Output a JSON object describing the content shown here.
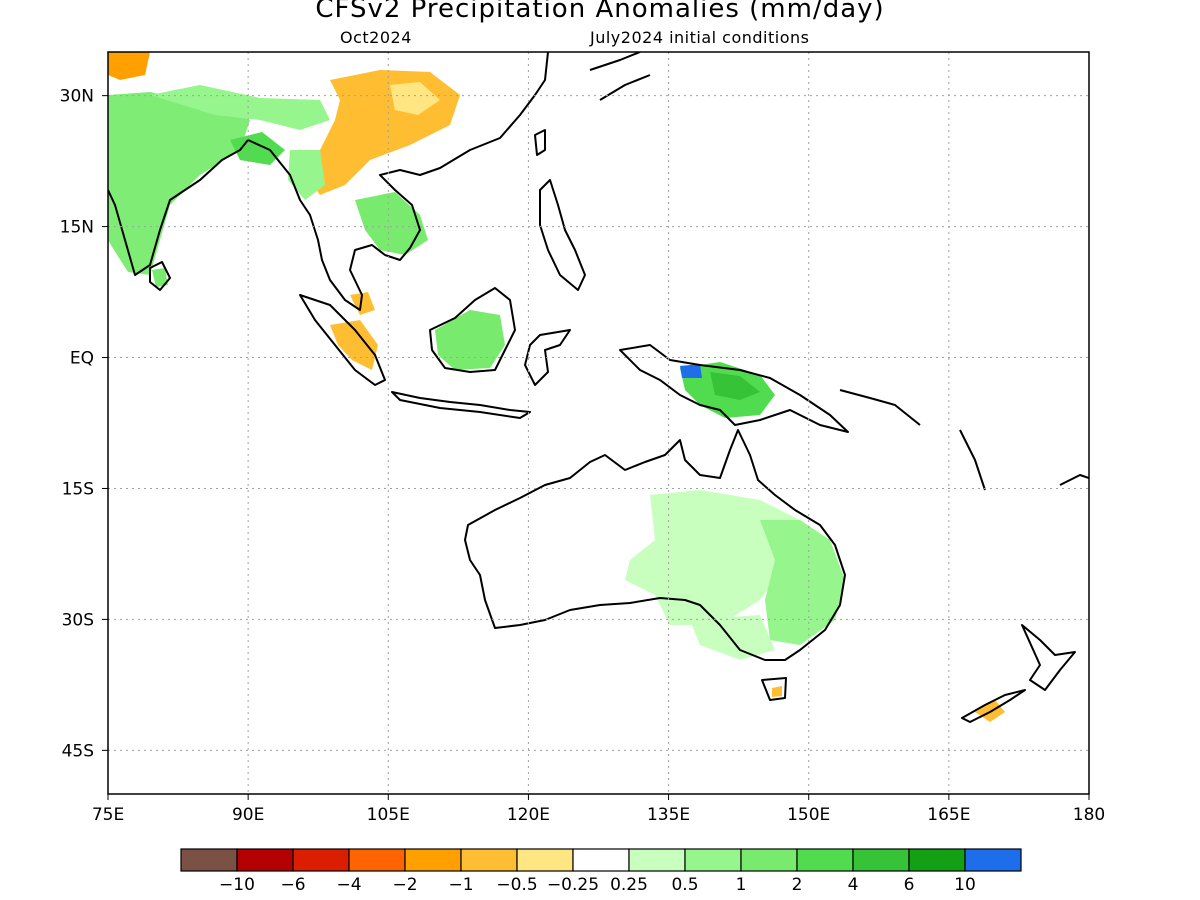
{
  "title": "CFSv2 Precipitation Anomalies (mm/day)",
  "valid_month": "Oct2024",
  "initial_conditions": "July2024 initial conditions",
  "map": {
    "lon_range": [
      75,
      180
    ],
    "lat_range": [
      -50,
      35
    ],
    "lon_ticks": [
      {
        "value": 75,
        "label": "75E"
      },
      {
        "value": 90,
        "label": "90E"
      },
      {
        "value": 105,
        "label": "105E"
      },
      {
        "value": 120,
        "label": "120E"
      },
      {
        "value": 135,
        "label": "135E"
      },
      {
        "value": 150,
        "label": "150E"
      },
      {
        "value": 165,
        "label": "165E"
      },
      {
        "value": 180,
        "label": "180"
      }
    ],
    "lat_ticks": [
      {
        "value": 30,
        "label": "30N"
      },
      {
        "value": 15,
        "label": "15N"
      },
      {
        "value": 0,
        "label": "EQ"
      },
      {
        "value": -15,
        "label": "15S"
      },
      {
        "value": -30,
        "label": "30S"
      },
      {
        "value": -45,
        "label": "45S"
      }
    ],
    "grid": true,
    "background": "#ffffff"
  },
  "colorbar": {
    "labels": [
      "−10",
      "−6",
      "−4",
      "−2",
      "−1",
      "−0.5",
      "−0.25",
      "0.25",
      "0.5",
      "1",
      "2",
      "4",
      "6",
      "10"
    ],
    "colors": [
      "#7b5045",
      "#b40000",
      "#dc1e00",
      "#ff6400",
      "#ffa000",
      "#ffbe32",
      "#ffe682",
      "#ffffff",
      "#c8ffbe",
      "#96f58c",
      "#78eb6e",
      "#50dc4e",
      "#37c337",
      "#14a014",
      "#1e6eeb"
    ]
  },
  "anomaly_regions": [
    {
      "name": "Indian subcontinent",
      "colorIndex": 9
    },
    {
      "name": "Southern China",
      "colorIndex": 5
    },
    {
      "name": "Indochina",
      "colorIndex": 9
    },
    {
      "name": "Sumatra",
      "colorIndex": 5
    },
    {
      "name": "Borneo",
      "colorIndex": 9
    },
    {
      "name": "New Guinea",
      "colorIndex": 11
    },
    {
      "name": "Eastern Australia",
      "colorIndex": 9
    },
    {
      "name": "Interior Australia",
      "colorIndex": 8
    },
    {
      "name": "New Zealand South Island",
      "colorIndex": 5
    },
    {
      "name": "Tasmania",
      "colorIndex": 5
    }
  ]
}
